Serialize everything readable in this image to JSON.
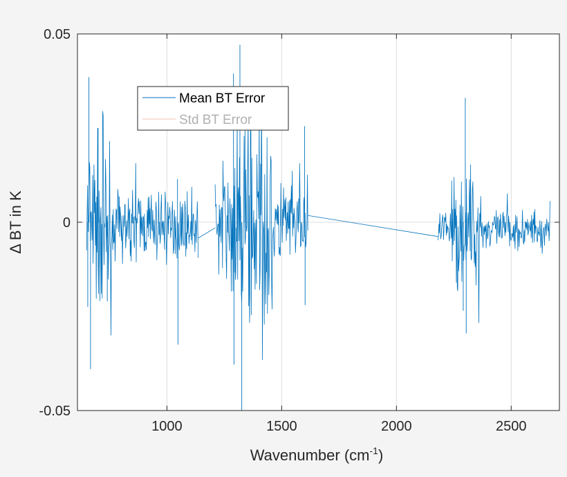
{
  "chart_data": {
    "type": "line",
    "title": "",
    "xlabel_main": "Wavenumber (cm",
    "xlabel_sup": "-1",
    "xlabel_tail": ")",
    "ylabel": "Δ BT in K",
    "xlim": [
      610,
      2710
    ],
    "ylim": [
      -0.05,
      0.05
    ],
    "xticks": [
      1000,
      1500,
      2000,
      2500
    ],
    "xtick_labels": [
      "1000",
      "1500",
      "2000",
      "2500"
    ],
    "yticks": [
      -0.05,
      0,
      0.05
    ],
    "ytick_labels": [
      "-0.05",
      "0",
      "0.05"
    ],
    "grid": true,
    "legend_location": "upper-left",
    "colors": {
      "mean": "#0072bd",
      "std": "#d95319",
      "axis": "#262626",
      "grid": "#dcdcdc",
      "plot_bg": "#ffffff",
      "page_bg": "#f4f4f4"
    },
    "series": [
      {
        "name": "Mean BT Error",
        "bands": [
          {
            "from": 650,
            "to": 1136,
            "step": 2,
            "center": -0.001,
            "amplitude": 0.004
          },
          {
            "from": 1210,
            "to": 1614,
            "step": 2,
            "center": -0.001,
            "amplitude": 0.006
          },
          {
            "from": 2181,
            "to": 2670,
            "step": 2,
            "center": -0.002,
            "amplitude": 0.0025
          }
        ],
        "amplitude_boosts": [
          {
            "from": 650,
            "to": 760,
            "factor": 2.8
          },
          {
            "from": 1280,
            "to": 1460,
            "factor": 2.2
          },
          {
            "from": 2240,
            "to": 2370,
            "factor": 3.0
          }
        ],
        "spikes": [
          {
            "x": 660,
            "y": 0.0385
          },
          {
            "x": 667,
            "y": -0.039
          },
          {
            "x": 655,
            "y": -0.0225
          },
          {
            "x": 700,
            "y": 0.025
          },
          {
            "x": 740,
            "y": -0.021
          },
          {
            "x": 1046,
            "y": 0.0115
          },
          {
            "x": 1048,
            "y": -0.0325
          },
          {
            "x": 1290,
            "y": 0.0395
          },
          {
            "x": 1292,
            "y": -0.0378
          },
          {
            "x": 1318,
            "y": 0.0471
          },
          {
            "x": 1326,
            "y": -0.0512
          },
          {
            "x": 1340,
            "y": 0.0345
          },
          {
            "x": 1600,
            "y": 0.0255
          },
          {
            "x": 1602,
            "y": -0.022
          },
          {
            "x": 2300,
            "y": 0.033
          },
          {
            "x": 2304,
            "y": -0.0295
          },
          {
            "x": 2291,
            "y": -0.0235
          }
        ],
        "links": [
          {
            "x": [
              1136,
              1210
            ],
            "y": [
              -0.0042,
              -0.0015
            ]
          },
          {
            "x": [
              1614,
              2181
            ],
            "y": [
              0.0018,
              -0.0038
            ]
          }
        ]
      },
      {
        "name": "Std BT Error"
      }
    ],
    "random_seed": 7
  }
}
